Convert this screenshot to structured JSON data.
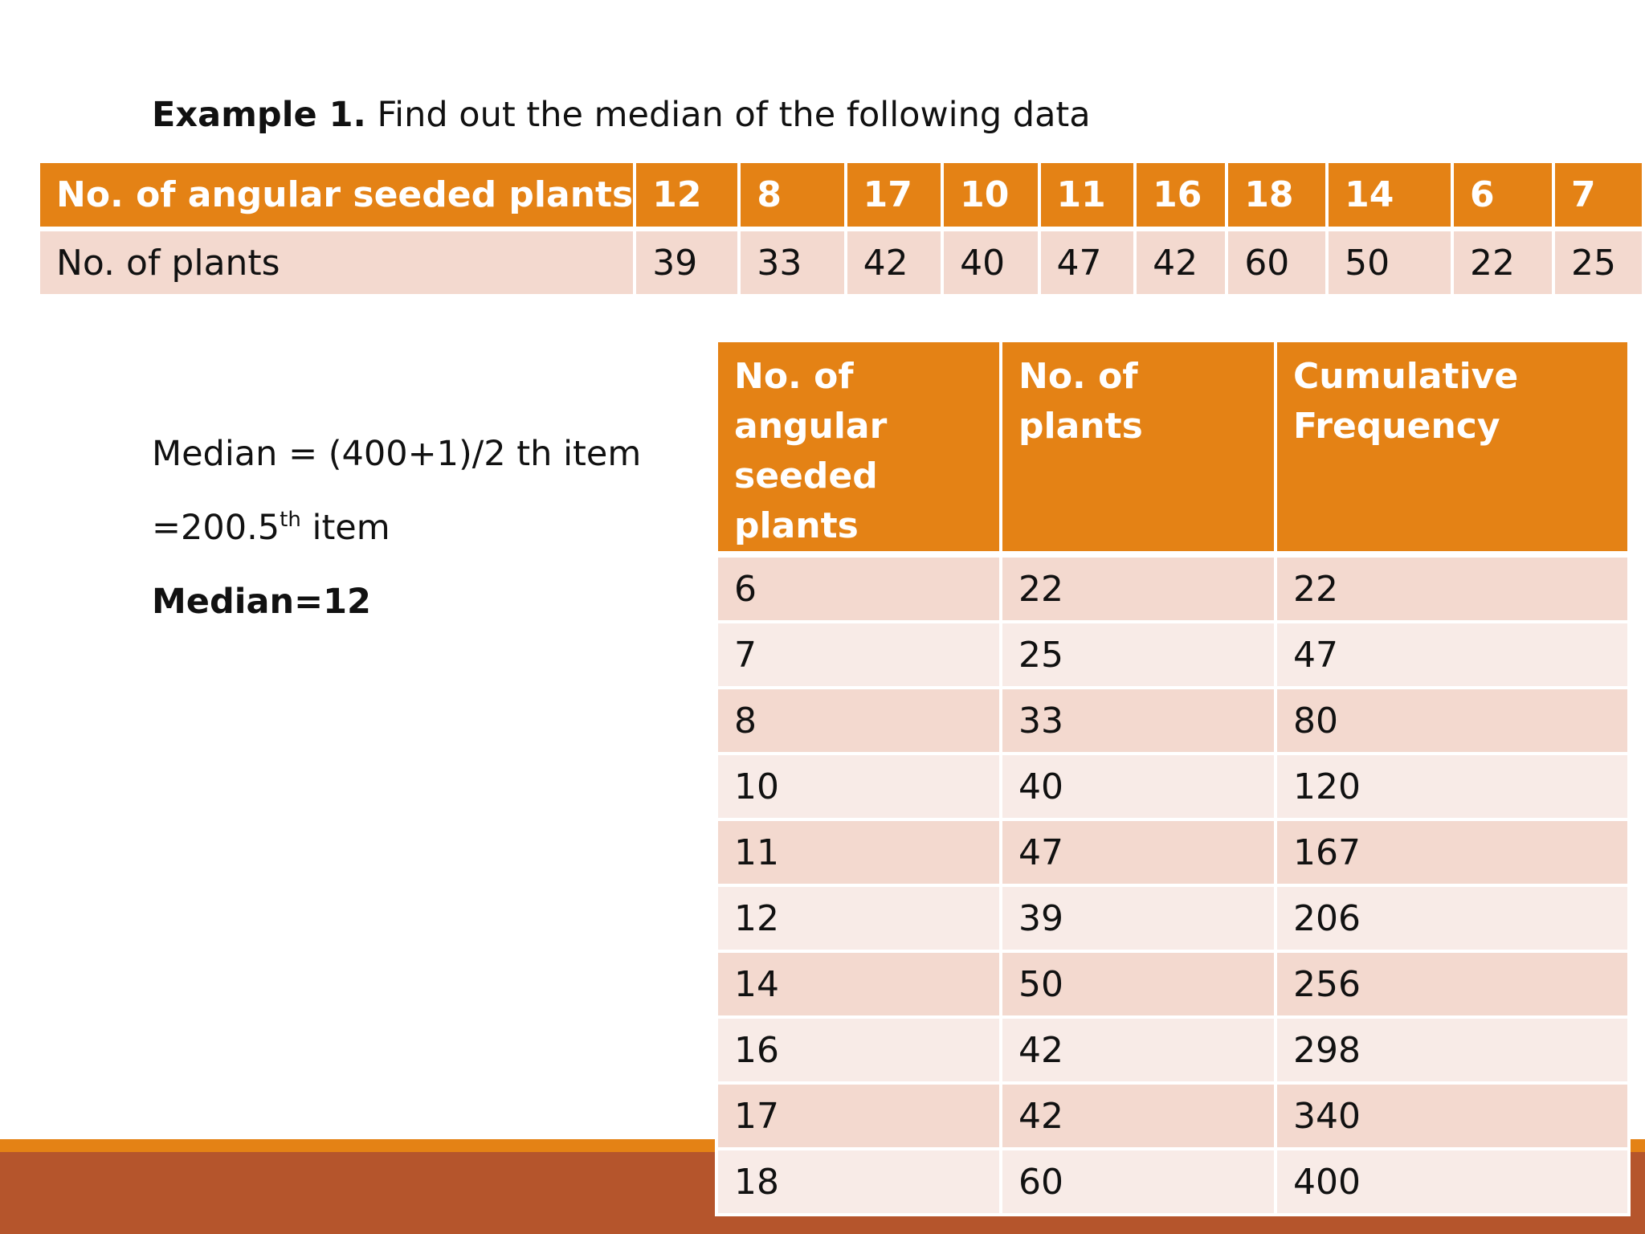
{
  "heading": {
    "bold": "Example 1.",
    "text": " Find out the median of the following data"
  },
  "top_table": {
    "row1_label": "No. of angular seeded plants",
    "row1_values": [
      "12",
      "8",
      "17",
      "10",
      "11",
      "16",
      "18",
      "14",
      "6",
      "7"
    ],
    "row2_label": "No. of plants",
    "row2_values": [
      "39",
      "33",
      "42",
      "40",
      "47",
      "42",
      "60",
      "50",
      "22",
      "25"
    ]
  },
  "explanation": {
    "line1": "Median = (400+1)/2 th item",
    "line2_main": "=200.5",
    "line2_sup": "th",
    "line2_rest": " item",
    "line3": "Median=12"
  },
  "cf_table": {
    "headers": [
      "No. of angular seeded plants",
      "No. of plants",
      "Cumulative Frequency"
    ],
    "rows": [
      [
        "6",
        "22",
        "22"
      ],
      [
        "7",
        "25",
        "47"
      ],
      [
        "8",
        "33",
        "80"
      ],
      [
        "10",
        "40",
        "120"
      ],
      [
        "11",
        "47",
        "167"
      ],
      [
        "12",
        "39",
        "206"
      ],
      [
        "14",
        "50",
        "256"
      ],
      [
        "16",
        "42",
        "298"
      ],
      [
        "17",
        "42",
        "340"
      ],
      [
        "18",
        "60",
        "400"
      ]
    ]
  },
  "colors": {
    "header_orange": "#e48215",
    "row_pink": "#f3d9cf",
    "row_light": "#f8ebe7",
    "band_rust": "#b5552c"
  }
}
